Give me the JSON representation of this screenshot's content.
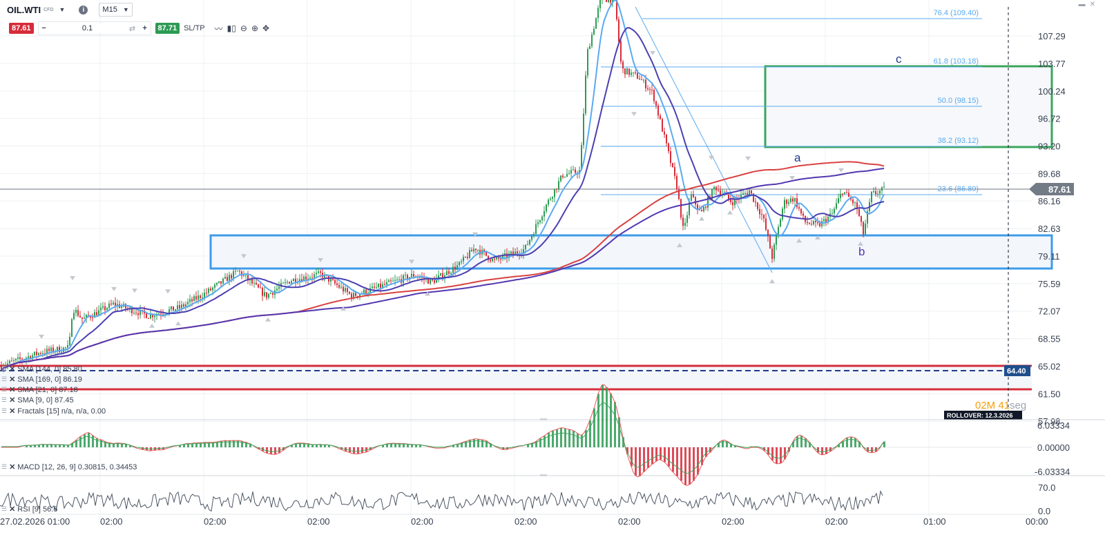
{
  "toolbar": {
    "symbol": "OIL.WTI",
    "symbol_type": "CFD",
    "timeframe": "M15",
    "sell_price": "87.61",
    "volume": "0.1",
    "buy_price": "87.71",
    "sltp_label": "SL/TP",
    "minus": "−",
    "plus": "+"
  },
  "price_axis": {
    "labels": [
      "107.29",
      "103.77",
      "100.24",
      "96.72",
      "93.20",
      "89.68",
      "86.16",
      "82.63",
      "79.11",
      "75.59",
      "72.07",
      "68.55",
      "65.02",
      "61.50",
      "57.98"
    ],
    "current_price": "87.61",
    "marker_price": "64.40"
  },
  "time_axis": {
    "labels": [
      "27.02.2026 01:00",
      "02:00",
      "02:00",
      "02:00",
      "02:00",
      "02:00",
      "02:00",
      "02:00",
      "02:00",
      "01:00",
      "00:00"
    ]
  },
  "fib_labels": [
    "76.4 (109.40)",
    "61.8 (103.18)",
    "50.0 (98.15)",
    "38.2 (93.12)",
    "23.6 (86.89)"
  ],
  "wave_labels": {
    "a": "a",
    "b": "b",
    "c": "c"
  },
  "countdown": {
    "minutes": "02M",
    "seconds": "41",
    "suffix": "seg"
  },
  "rollover": "ROLLOVER: 12.3.2026",
  "indicators": [
    {
      "label": "SMA [144, 0] 85.80"
    },
    {
      "label": "SMA [169, 0] 86.19"
    },
    {
      "label": "SMA [21, 0] 87.18"
    },
    {
      "label": "SMA [9, 0] 87.45"
    },
    {
      "label": "Fractals [15] n/a, n/a, 0.00"
    }
  ],
  "macd": {
    "label": "MACD [12, 26, 9] 0.30815, 0.34453",
    "axis": [
      "6.03334",
      "0.00000",
      "-6.03334"
    ]
  },
  "rsi": {
    "label": "RSI [9] 56.6",
    "axis": [
      "70.0",
      "0.0"
    ]
  },
  "colors": {
    "bull": "#2d9b54",
    "bear": "#d62c3a",
    "sma9": "#5aaaf0",
    "sma21": "#4a3fb0",
    "sma144": "#d94040",
    "sma169": "#5236b0",
    "fib": "#5aaaf0",
    "zone_blue": "#3d9be9",
    "zone_green": "#3aa55c"
  }
}
